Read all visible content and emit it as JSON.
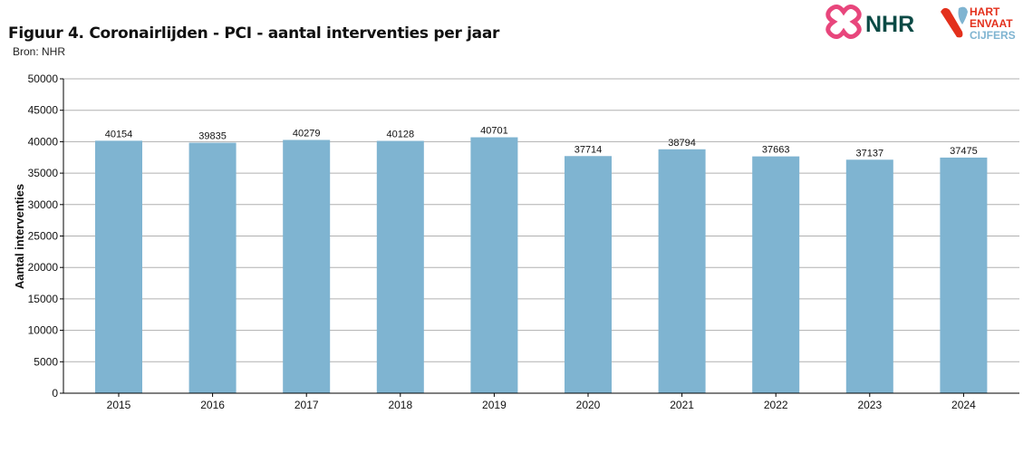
{
  "header": {
    "title": "Figuur 4. Coronairlijden - PCI - aantal interventies per jaar",
    "source": "Bron: NHR"
  },
  "logos": {
    "nhr": "NHR",
    "hvc_line1": "HART",
    "hvc_line2": "ENVAAT",
    "hvc_line3": "CIJFERS"
  },
  "colors": {
    "bar": "#7fb4d1",
    "grid": "#b0b0b0",
    "nhr_pink": "#e8467c",
    "nhr_green": "#0b4a45",
    "hvc_red": "#e3301c",
    "hvc_blue": "#7fb4d1"
  },
  "chart_data": {
    "type": "bar",
    "title": "Figuur 4. Coronairlijden - PCI - aantal interventies per jaar",
    "xlabel": "",
    "ylabel": "Aantal interventies",
    "categories": [
      "2015",
      "2016",
      "2017",
      "2018",
      "2019",
      "2020",
      "2021",
      "2022",
      "2023",
      "2024"
    ],
    "values": [
      40154,
      39835,
      40279,
      40128,
      40701,
      37714,
      38794,
      37663,
      37137,
      37475
    ],
    "ylim": [
      0,
      50000
    ],
    "yticks": [
      0,
      5000,
      10000,
      15000,
      20000,
      25000,
      30000,
      35000,
      40000,
      45000,
      50000
    ],
    "grid": true,
    "legend": "none"
  }
}
